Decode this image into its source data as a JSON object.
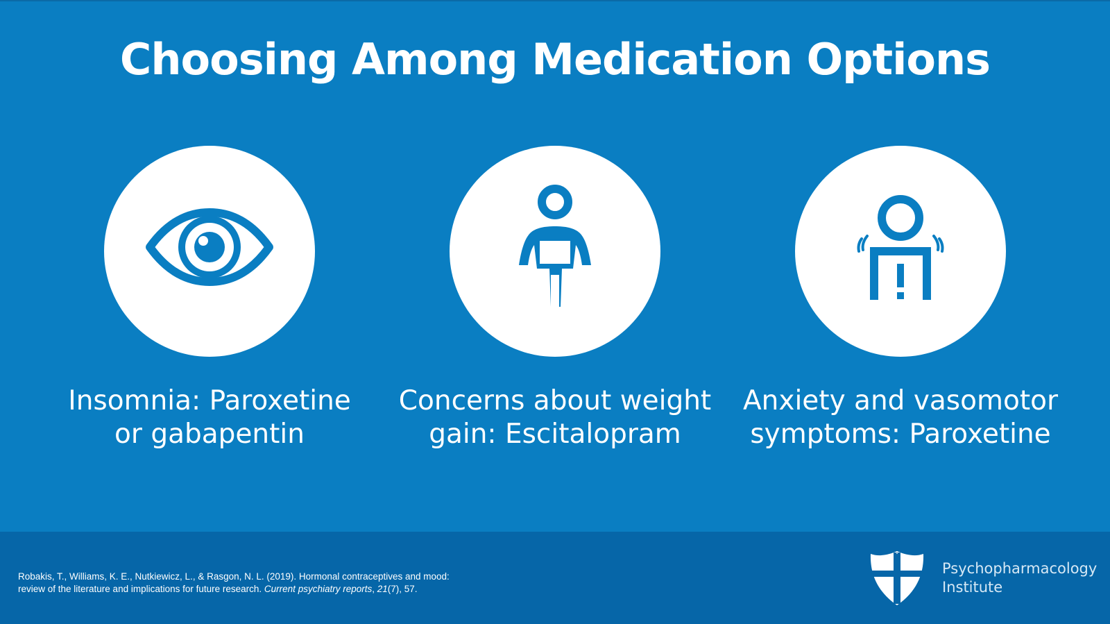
{
  "slide": {
    "title": "Choosing Among Medication Options",
    "cards": [
      {
        "icon": "eye-icon",
        "line1": "Insomnia: Paroxetine",
        "line2": "or gabapentin"
      },
      {
        "icon": "person-weight-icon",
        "line1": "Concerns about weight",
        "line2": "gain: Escitalopram"
      },
      {
        "icon": "person-anxiety-icon",
        "line1": "Anxiety and vasomotor",
        "line2": "symptoms: Paroxetine"
      }
    ]
  },
  "footer": {
    "citation_line1": "Robakis, T., Williams, K. E., Nutkiewicz, L., & Rasgon, N. L. (2019). Hormonal contraceptives and mood:",
    "citation_line2_plain": "review of the literature and implications for future research. ",
    "citation_journal": "Current psychiatry reports",
    "citation_sep": ", ",
    "citation_volume": "21",
    "citation_issue_pages": "(7), 57.",
    "logo_line1": "Psychopharmacology",
    "logo_line2": "Institute"
  },
  "colors": {
    "background": "#0a7ec2",
    "footer": "#0666a8",
    "icon": "#0a7ec2",
    "text": "#ffffff"
  }
}
